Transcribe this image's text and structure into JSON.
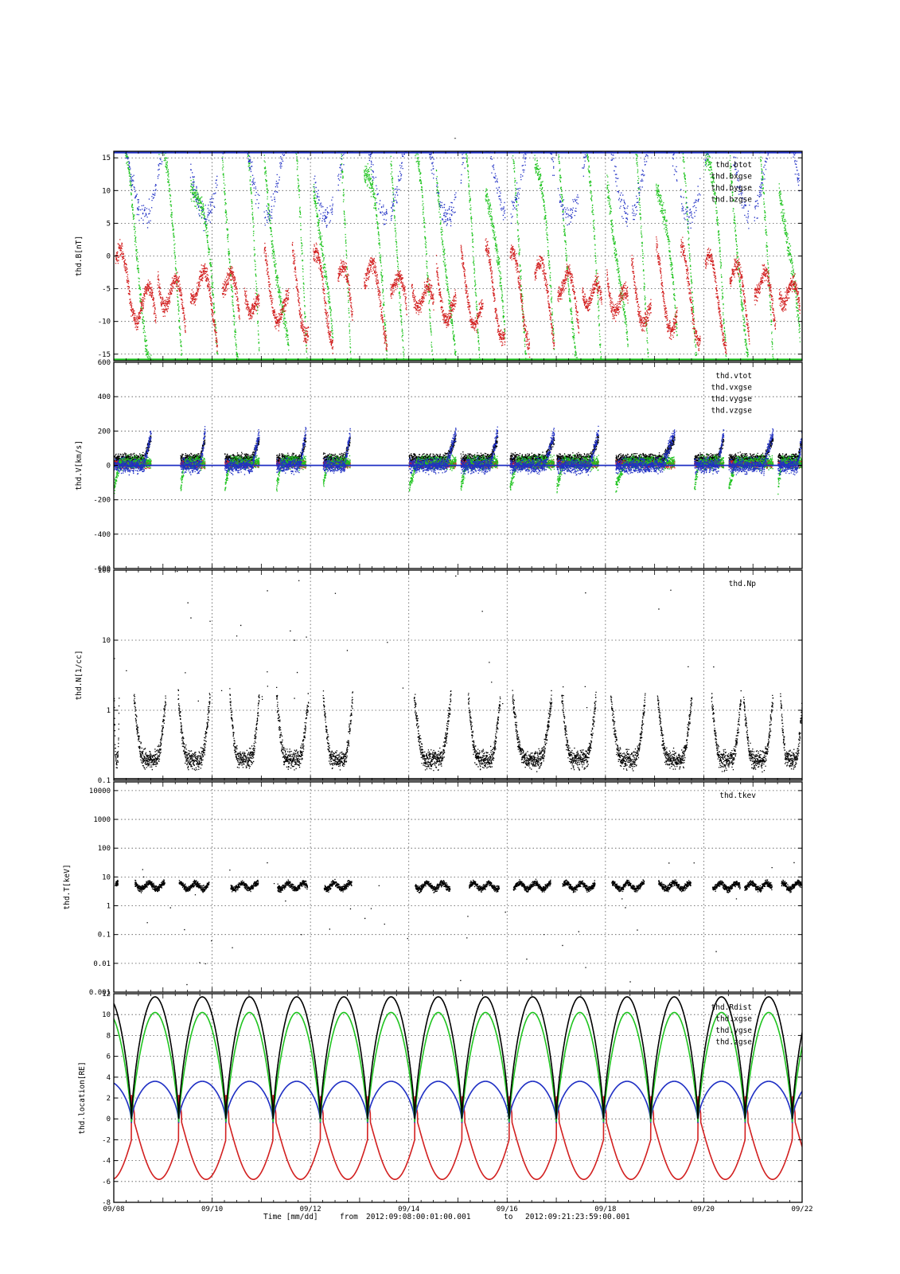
{
  "page": {
    "top_mark": "-",
    "x_title_label": "Time [mm/dd]",
    "x_title_from_word": "from",
    "x_title_from": "2012:09:08:00:01:00.001",
    "x_title_to_word": "to",
    "x_title_to": "2012:09:21:23:59:00.001"
  },
  "colors": {
    "red": "#d21f1f",
    "green": "#1fc41f",
    "blue": "#1f2fc4",
    "black": "#000000",
    "grid": "#555555"
  },
  "x_axis": {
    "range_days": [
      0,
      14
    ],
    "ticks": [
      {
        "day": 0,
        "label": "09/08"
      },
      {
        "day": 2,
        "label": "09/10"
      },
      {
        "day": 4,
        "label": "09/12"
      },
      {
        "day": 6,
        "label": "09/14"
      },
      {
        "day": 8,
        "label": "09/16"
      },
      {
        "day": 10,
        "label": "09/18"
      },
      {
        "day": 12,
        "label": "09/20"
      },
      {
        "day": 14,
        "label": "09/22"
      }
    ]
  },
  "chart_data": [
    {
      "type": "scatter",
      "ylabel": "thd.B[nT]",
      "scale": "linear",
      "ylim": [
        -16,
        16
      ],
      "yticks": [
        15,
        10,
        5,
        0,
        -5,
        -10,
        -15
      ],
      "grid": true,
      "legend_position": "top-right",
      "series": [
        {
          "name": "thd.btot",
          "color": "black"
        },
        {
          "name": "thd.bxgse",
          "color": "red"
        },
        {
          "name": "thd.bygse",
          "color": "green"
        },
        {
          "name": "thd.bzgse",
          "color": "blue"
        }
      ]
    },
    {
      "type": "scatter",
      "ylabel": "thd.V[km/s]",
      "scale": "linear",
      "ylim": [
        -600,
        600
      ],
      "yticks": [
        600,
        400,
        200,
        0,
        -200,
        -400,
        -600
      ],
      "grid": true,
      "legend_position": "top-right",
      "series": [
        {
          "name": "thd.vtot",
          "color": "black"
        },
        {
          "name": "thd.vxgse",
          "color": "red"
        },
        {
          "name": "thd.vygse",
          "color": "green"
        },
        {
          "name": "thd.vzgse",
          "color": "blue"
        }
      ]
    },
    {
      "type": "scatter",
      "ylabel": "thd.N[1/cc]",
      "scale": "log",
      "ylim": [
        0.1,
        100
      ],
      "yticks": [
        100,
        10,
        1,
        0.1
      ],
      "grid": true,
      "legend_position": "top-right",
      "series": [
        {
          "name": "thd.Np",
          "color": "black"
        }
      ]
    },
    {
      "type": "scatter",
      "ylabel": "thd.T[keV]",
      "scale": "log",
      "ylim": [
        0.001,
        20000
      ],
      "yticks": [
        10000,
        1000,
        100,
        10,
        1,
        0.1,
        0.01,
        0.001
      ],
      "grid": true,
      "legend_position": "top-right",
      "series": [
        {
          "name": "thd.tkev",
          "color": "black"
        }
      ]
    },
    {
      "type": "line",
      "ylabel": "thd.location[RE]",
      "scale": "linear",
      "ylim": [
        -8,
        12
      ],
      "yticks": [
        12,
        10,
        8,
        6,
        4,
        2,
        0,
        -2,
        -4,
        -6,
        -8
      ],
      "grid": true,
      "legend_position": "top-right",
      "series": [
        {
          "name": "thd.Rdist",
          "color": "black"
        },
        {
          "name": "thd.xgse",
          "color": "red"
        },
        {
          "name": "thd.ygse",
          "color": "green"
        },
        {
          "name": "thd.zgse",
          "color": "blue"
        }
      ],
      "orbit_period_days": 0.96
    }
  ]
}
